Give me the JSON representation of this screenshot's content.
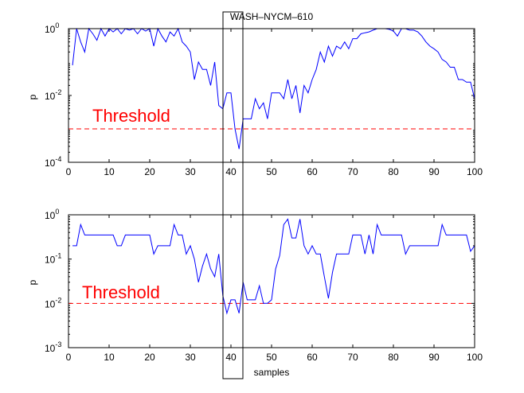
{
  "chart_data": [
    {
      "type": "line",
      "title": "WASH–NYCM–610",
      "xlabel": "",
      "ylabel": "p",
      "yscale": "log",
      "xlim": [
        0,
        100
      ],
      "ylim": [
        0.0001,
        1
      ],
      "xticks": [
        "0",
        "10",
        "20",
        "30",
        "40",
        "50",
        "60",
        "70",
        "80",
        "90",
        "100"
      ],
      "yticks": [
        {
          "value": 1,
          "base": "10",
          "exp": "0"
        },
        {
          "value": 0.01,
          "base": "10",
          "exp": "-2"
        },
        {
          "value": 0.0001,
          "base": "10",
          "exp": "-4"
        }
      ],
      "series_color": "#0000ff",
      "threshold": {
        "label": "Threshold",
        "value": 0.001,
        "color": "#ff0000",
        "style": "dashed"
      },
      "x": [
        1,
        2,
        3,
        4,
        5,
        6,
        7,
        8,
        9,
        10,
        11,
        12,
        13,
        14,
        15,
        16,
        17,
        18,
        19,
        20,
        21,
        22,
        23,
        24,
        25,
        26,
        27,
        28,
        29,
        30,
        31,
        32,
        33,
        34,
        35,
        36,
        37,
        38,
        39,
        40,
        41,
        42,
        43,
        44,
        45,
        46,
        47,
        48,
        49,
        50,
        51,
        52,
        53,
        54,
        55,
        56,
        57,
        58,
        59,
        60,
        61,
        62,
        63,
        64,
        65,
        66,
        67,
        68,
        69,
        70,
        71,
        72,
        73,
        74,
        75,
        76,
        77,
        78,
        79,
        80,
        81,
        82,
        83,
        84,
        85,
        86,
        87,
        88,
        89,
        90,
        91,
        92,
        93,
        94,
        95,
        96,
        97,
        98,
        99,
        100
      ],
      "y": [
        0.08,
        1,
        0.4,
        0.2,
        1,
        0.7,
        0.45,
        1,
        0.6,
        1,
        0.8,
        1,
        0.7,
        1,
        0.9,
        1,
        0.7,
        1,
        0.85,
        1,
        0.3,
        1,
        0.6,
        0.4,
        0.8,
        0.6,
        1,
        0.4,
        0.3,
        0.2,
        0.03,
        0.1,
        0.06,
        0.06,
        0.02,
        0.1,
        0.005,
        0.004,
        0.012,
        0.012,
        0.001,
        0.00025,
        0.002,
        0.002,
        0.002,
        0.008,
        0.004,
        0.006,
        0.002,
        0.012,
        0.012,
        0.012,
        0.008,
        0.03,
        0.008,
        0.02,
        0.003,
        0.02,
        0.012,
        0.03,
        0.06,
        0.2,
        0.1,
        0.3,
        0.15,
        0.3,
        0.25,
        0.4,
        0.25,
        0.5,
        0.5,
        0.7,
        0.75,
        0.8,
        0.9,
        1,
        1,
        1,
        0.95,
        0.85,
        0.6,
        1,
        1,
        0.9,
        0.9,
        0.8,
        0.6,
        0.4,
        0.3,
        0.25,
        0.2,
        0.12,
        0.1,
        0.07,
        0.07,
        0.03,
        0.03,
        0.025,
        0.025,
        0.008
      ]
    },
    {
      "type": "line",
      "title": "",
      "xlabel": "samples",
      "ylabel": "p",
      "yscale": "log",
      "xlim": [
        0,
        100
      ],
      "ylim": [
        0.001,
        1
      ],
      "xticks": [
        "0",
        "10",
        "20",
        "30",
        "40",
        "50",
        "60",
        "70",
        "80",
        "90",
        "100"
      ],
      "yticks": [
        {
          "value": 1,
          "base": "10",
          "exp": "0"
        },
        {
          "value": 0.1,
          "base": "10",
          "exp": "-1"
        },
        {
          "value": 0.01,
          "base": "10",
          "exp": "-2"
        },
        {
          "value": 0.001,
          "base": "10",
          "exp": "-3"
        }
      ],
      "series_color": "#0000ff",
      "threshold": {
        "label": "Threshold",
        "value": 0.01,
        "color": "#ff0000",
        "style": "dashed"
      },
      "x": [
        1,
        2,
        3,
        4,
        5,
        6,
        7,
        8,
        9,
        10,
        11,
        12,
        13,
        14,
        15,
        16,
        17,
        18,
        19,
        20,
        21,
        22,
        23,
        24,
        25,
        26,
        27,
        28,
        29,
        30,
        31,
        32,
        33,
        34,
        35,
        36,
        37,
        38,
        39,
        40,
        41,
        42,
        43,
        44,
        45,
        46,
        47,
        48,
        49,
        50,
        51,
        52,
        53,
        54,
        55,
        56,
        57,
        58,
        59,
        60,
        61,
        62,
        63,
        64,
        65,
        66,
        67,
        68,
        69,
        70,
        71,
        72,
        73,
        74,
        75,
        76,
        77,
        78,
        79,
        80,
        81,
        82,
        83,
        84,
        85,
        86,
        87,
        88,
        89,
        90,
        91,
        92,
        93,
        94,
        95,
        96,
        97,
        98,
        99,
        100
      ],
      "y": [
        0.2,
        0.2,
        0.6,
        0.35,
        0.35,
        0.35,
        0.35,
        0.35,
        0.35,
        0.35,
        0.35,
        0.2,
        0.2,
        0.35,
        0.35,
        0.35,
        0.35,
        0.35,
        0.35,
        0.35,
        0.13,
        0.2,
        0.2,
        0.2,
        0.2,
        0.6,
        0.35,
        0.35,
        0.13,
        0.2,
        0.1,
        0.03,
        0.07,
        0.13,
        0.06,
        0.04,
        0.13,
        0.015,
        0.006,
        0.012,
        0.012,
        0.006,
        0.03,
        0.012,
        0.012,
        0.012,
        0.025,
        0.01,
        0.01,
        0.012,
        0.06,
        0.12,
        0.6,
        0.8,
        0.3,
        0.3,
        0.8,
        0.2,
        0.13,
        0.2,
        0.13,
        0.13,
        0.04,
        0.013,
        0.05,
        0.13,
        0.13,
        0.13,
        0.13,
        0.35,
        0.35,
        0.35,
        0.13,
        0.35,
        0.13,
        0.6,
        0.35,
        0.35,
        0.35,
        0.35,
        0.35,
        0.35,
        0.13,
        0.2,
        0.2,
        0.2,
        0.2,
        0.2,
        0.2,
        0.2,
        0.2,
        0.6,
        0.35,
        0.35,
        0.35,
        0.35,
        0.35,
        0.35,
        0.15,
        0.2
      ]
    }
  ]
}
